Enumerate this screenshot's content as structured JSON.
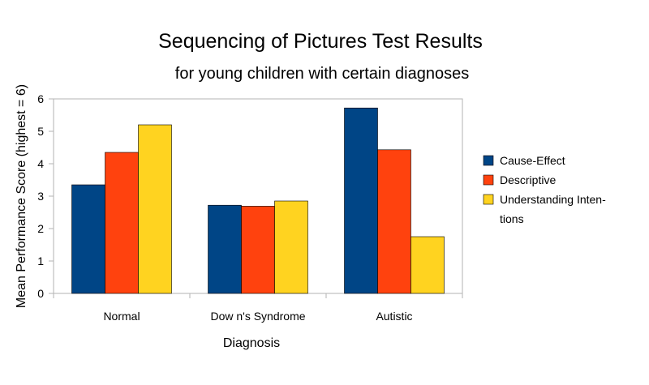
{
  "chart_data": {
    "type": "bar",
    "title": "Sequencing of Pictures Test Results",
    "subtitle": "for young children with certain diagnoses",
    "xlabel": "Diagnosis",
    "ylabel": "Mean Performance Score (highest = 6)",
    "categories": [
      "Normal",
      "Dow n's Syndrome",
      "Autistic"
    ],
    "ylim": [
      0,
      6
    ],
    "yticks": [
      0,
      1,
      2,
      3,
      4,
      5,
      6
    ],
    "grid": {
      "x": false,
      "y": false
    },
    "legend_position": "right",
    "series": [
      {
        "name": "Cause-Effect",
        "color": "#004586",
        "values": [
          3.35,
          2.72,
          5.72
        ]
      },
      {
        "name": "Descriptive",
        "color": "#ff420e",
        "values": [
          4.35,
          2.69,
          4.43
        ]
      },
      {
        "name": "Understanding Inten- tions",
        "color": "#ffd320",
        "values": [
          5.2,
          2.85,
          1.75
        ]
      }
    ]
  }
}
